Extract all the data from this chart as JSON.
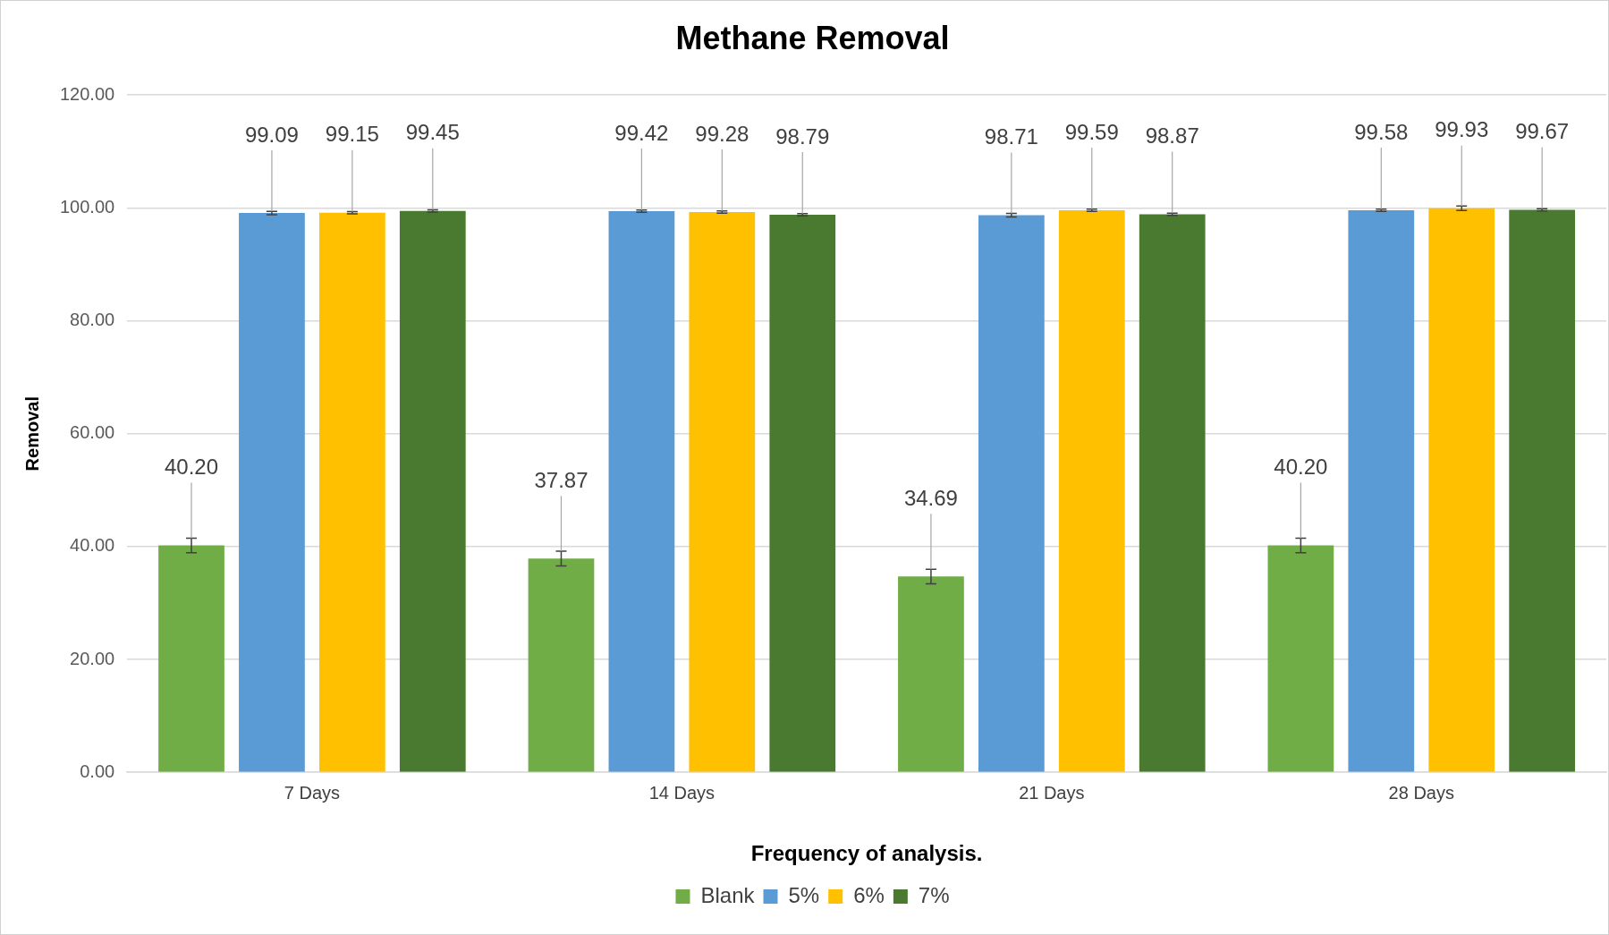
{
  "chart_data": {
    "type": "bar",
    "title": "Methane Removal",
    "xlabel": "Frequency of analysis.",
    "ylabel": "Removal",
    "categories": [
      "7 Days",
      "14 Days",
      "21 Days",
      "28 Days"
    ],
    "series": [
      {
        "name": "Blank",
        "color": "#70ad47",
        "values": [
          40.2,
          37.87,
          34.69,
          40.2
        ],
        "errors": [
          1.3,
          1.3,
          1.3,
          1.3
        ],
        "value_labels": [
          "40.20",
          "37.87",
          "34.69",
          "40.20"
        ]
      },
      {
        "name": "5%",
        "color": "#5b9bd5",
        "values": [
          99.09,
          99.42,
          98.71,
          99.58
        ],
        "errors": [
          0.3,
          0.2,
          0.3,
          0.2
        ],
        "value_labels": [
          "99.09",
          "99.42",
          "98.71",
          "99.58"
        ]
      },
      {
        "name": "6%",
        "color": "#ffc000",
        "values": [
          99.15,
          99.28,
          99.59,
          99.93
        ],
        "errors": [
          0.2,
          0.2,
          0.2,
          0.4
        ],
        "value_labels": [
          "99.15",
          "99.28",
          "99.59",
          "99.93"
        ]
      },
      {
        "name": "7%",
        "color": "#4a7a30",
        "values": [
          99.45,
          98.79,
          98.87,
          99.67
        ],
        "errors": [
          0.2,
          0.2,
          0.2,
          0.2
        ],
        "value_labels": [
          "99.45",
          "98.79",
          "98.87",
          "99.67"
        ]
      }
    ],
    "ylim": [
      0,
      120
    ],
    "yticks": [
      {
        "value": 0,
        "label": "0.00"
      },
      {
        "value": 20,
        "label": "20.00"
      },
      {
        "value": 40,
        "label": "40.00"
      },
      {
        "value": 60,
        "label": "60.00"
      },
      {
        "value": 80,
        "label": "80.00"
      },
      {
        "value": 100,
        "label": "100.00"
      },
      {
        "value": 120,
        "label": "120.00"
      }
    ],
    "grid": "y",
    "legend": "bottom"
  }
}
